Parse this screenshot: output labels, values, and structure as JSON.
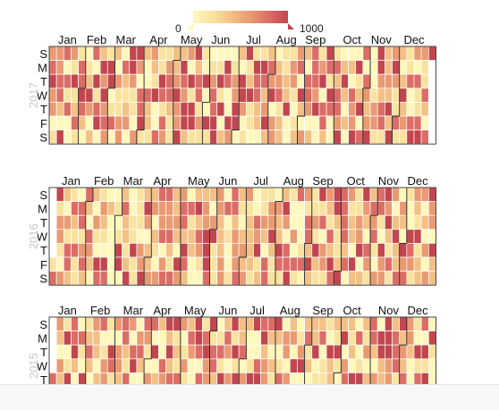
{
  "chart_data": {
    "type": "heatmap",
    "title": "",
    "colorscale": {
      "min_label": "0",
      "max_label": "1000",
      "range": [
        0,
        1000
      ],
      "colors": [
        "#fff7bc",
        "#f9e3a0",
        "#f3c086",
        "#e99a73",
        "#dc6d66",
        "#c2464f"
      ]
    },
    "weekday_labels": [
      "S",
      "M",
      "T",
      "W",
      "T",
      "F",
      "S"
    ],
    "month_labels": [
      "Jan",
      "Feb",
      "Mar",
      "Apr",
      "May",
      "Jun",
      "Jul",
      "Aug",
      "Sep",
      "Oct",
      "Nov",
      "Dec"
    ],
    "years": [
      {
        "label": "2017",
        "year": 2017,
        "seed": 17
      },
      {
        "label": "2016",
        "year": 2016,
        "seed": 16
      },
      {
        "label": "2015",
        "year": 2015,
        "seed": 15
      }
    ]
  }
}
